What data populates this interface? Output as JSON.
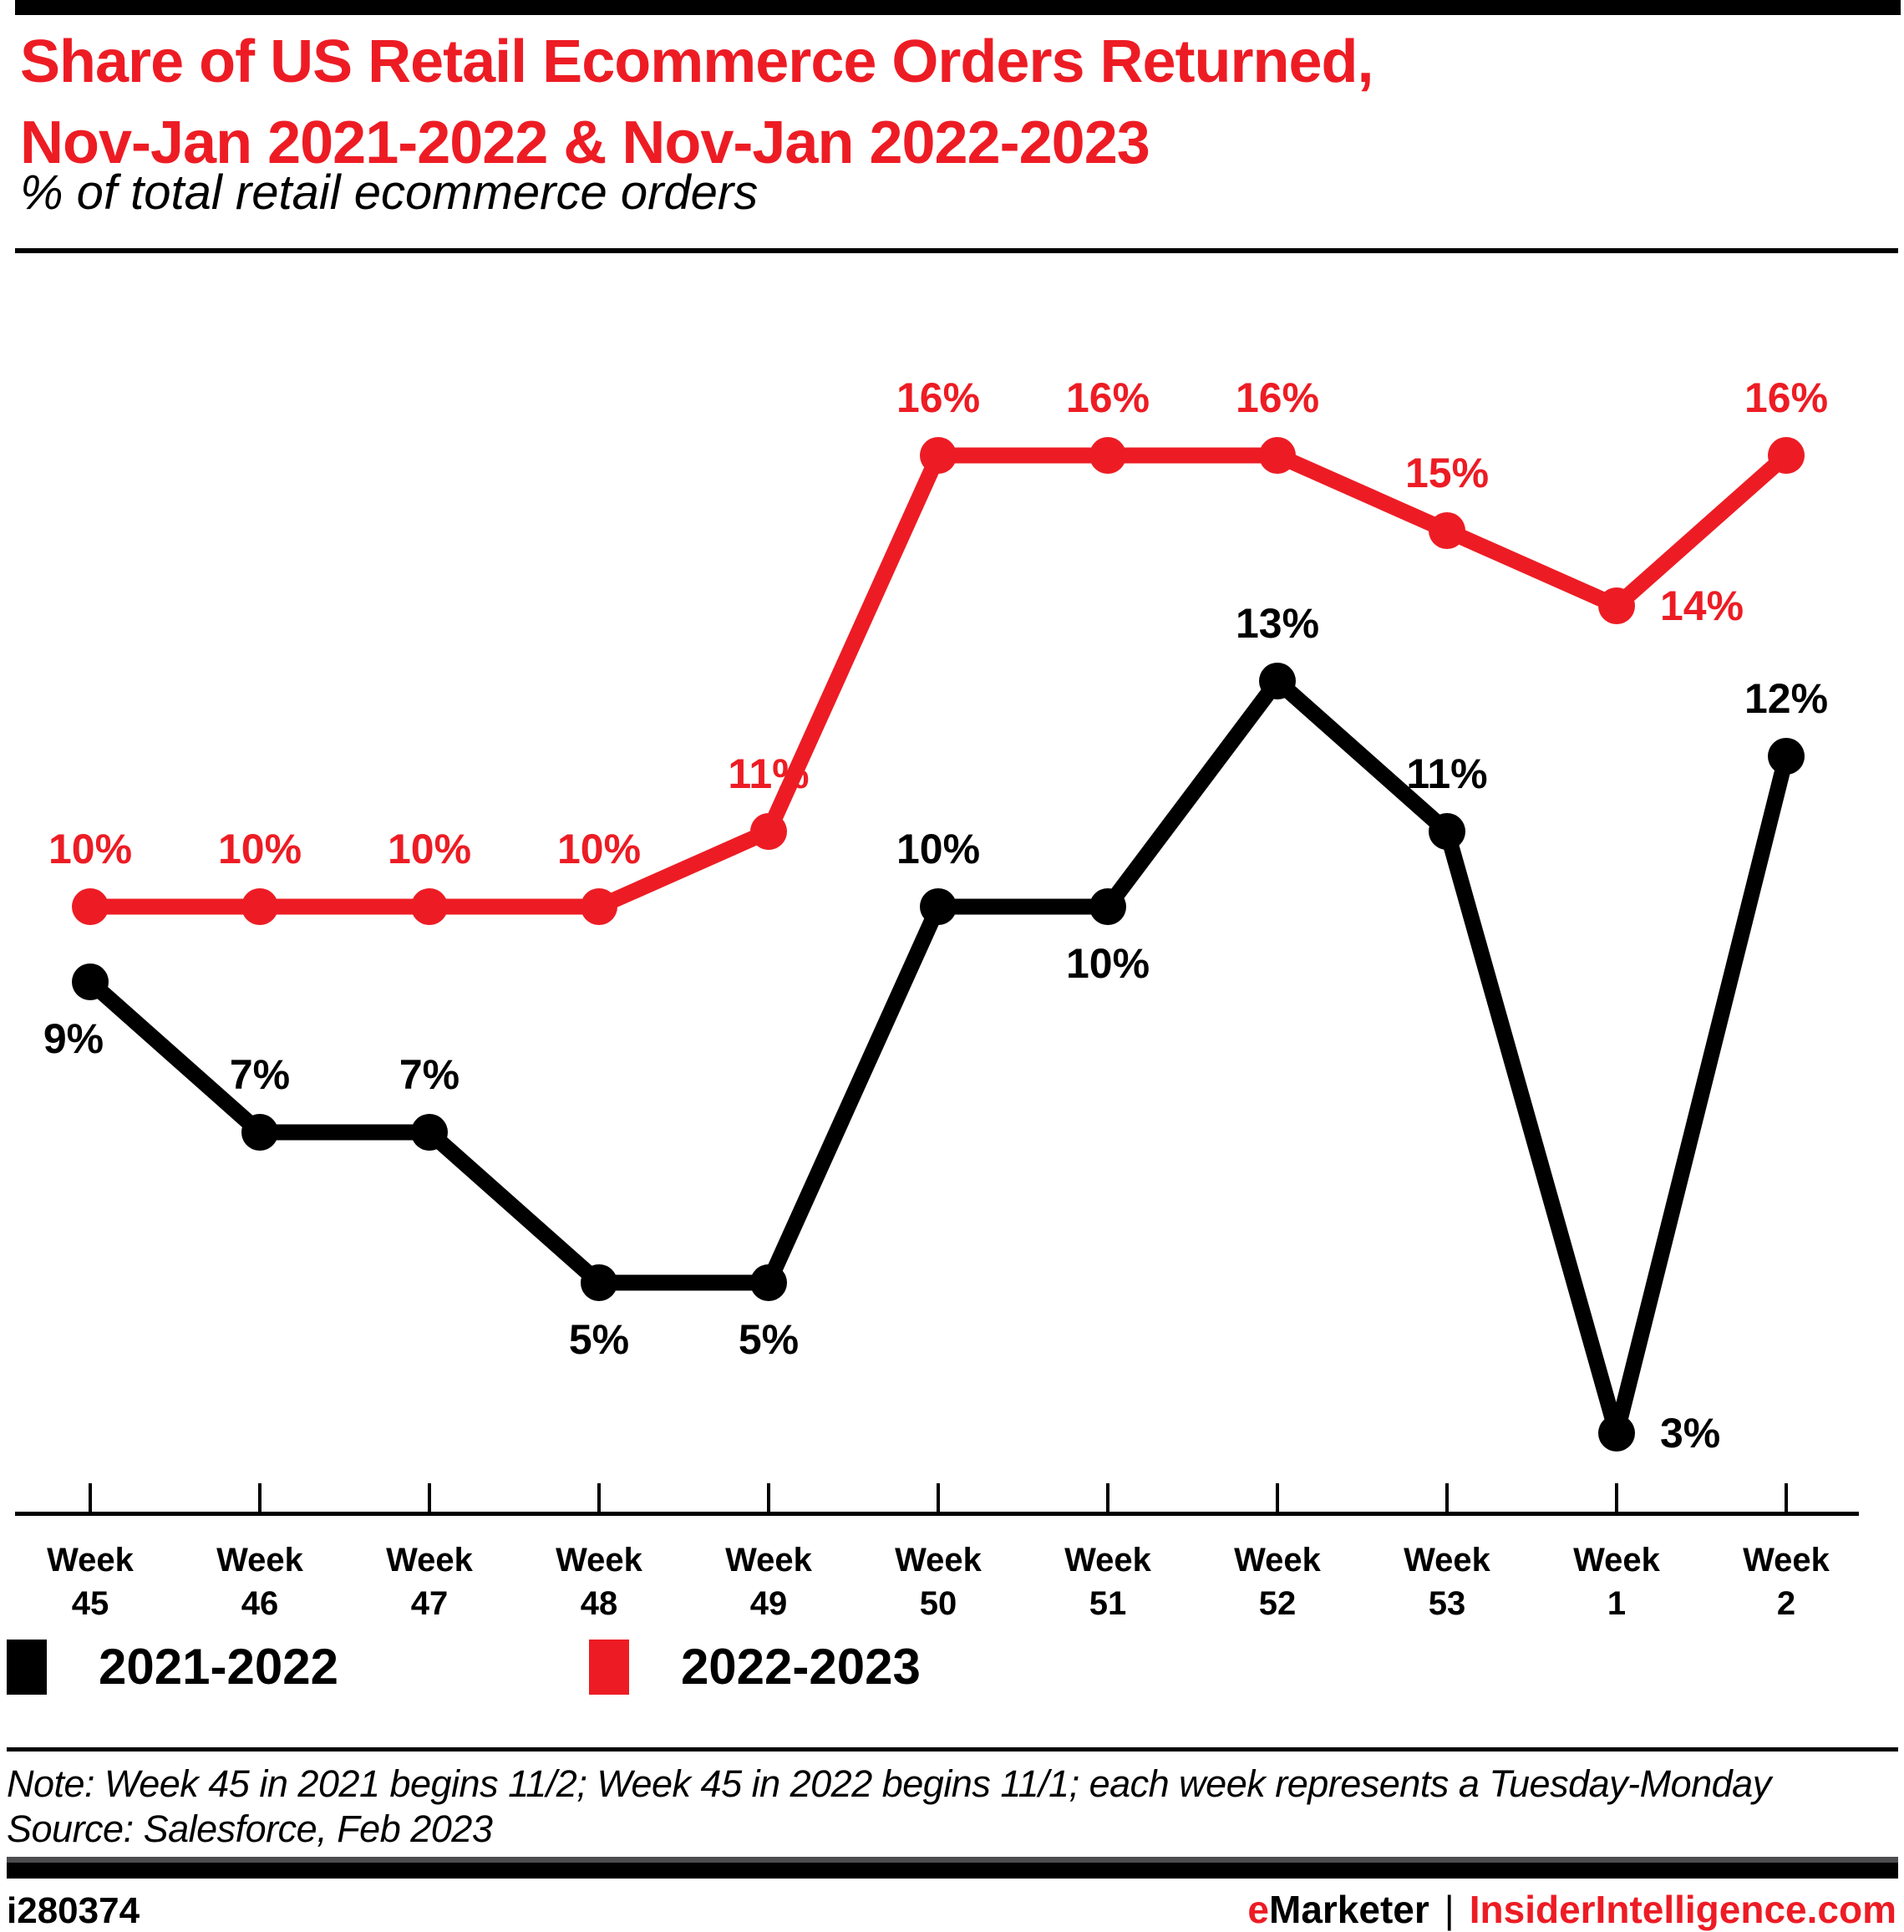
{
  "header": {
    "title_line1": "Share of US Retail Ecommerce Orders Returned,",
    "title_line2": "Nov-Jan 2021-2022 & Nov-Jan 2022-2023",
    "subtitle": "% of total retail ecommerce orders"
  },
  "chart_data": {
    "type": "line",
    "categories": [
      "Week 45",
      "Week 46",
      "Week 47",
      "Week 48",
      "Week 49",
      "Week 50",
      "Week 51",
      "Week 52",
      "Week 53",
      "Week 1",
      "Week 2"
    ],
    "category_word": "Week",
    "category_numbers": [
      "45",
      "46",
      "47",
      "48",
      "49",
      "50",
      "51",
      "52",
      "53",
      "1",
      "2"
    ],
    "series": [
      {
        "name": "2021-2022",
        "color": "#000000",
        "values": [
          9,
          7,
          7,
          5,
          5,
          10,
          10,
          13,
          11,
          3,
          12
        ],
        "unit": "%",
        "label_positions": [
          "below-left",
          "above",
          "above",
          "below",
          "below",
          "above",
          "below",
          "above",
          "above",
          "right",
          "above"
        ]
      },
      {
        "name": "2022-2023",
        "color": "#ED1C24",
        "values": [
          10,
          10,
          10,
          10,
          11,
          16,
          16,
          16,
          15,
          14,
          16
        ],
        "unit": "%",
        "label_positions": [
          "above",
          "above",
          "above",
          "above",
          "above",
          "above",
          "above",
          "above",
          "above",
          "right",
          "above"
        ]
      }
    ],
    "ylim": [
      0,
      18
    ],
    "grid": false,
    "legend_position": "bottom-left",
    "value_suffix": "%"
  },
  "legend": {
    "items": [
      {
        "label": "2021-2022",
        "color": "#000000"
      },
      {
        "label": "2022-2023",
        "color": "#ED1C24"
      }
    ]
  },
  "footnote": {
    "note": "Note: Week 45 in 2021 begins 11/2; Week 45 in 2022 begins 11/1; each week represents a Tuesday-Monday",
    "source": "Source: Salesforce, Feb 2023"
  },
  "footer": {
    "chart_id": "i280374",
    "brand_e": "e",
    "brand_rest": "Marketer",
    "separator": "|",
    "site": "InsiderIntelligence.com"
  },
  "colors": {
    "accent_red": "#ED1C24",
    "black": "#000000",
    "bar_gray": "#4D4D4F"
  }
}
